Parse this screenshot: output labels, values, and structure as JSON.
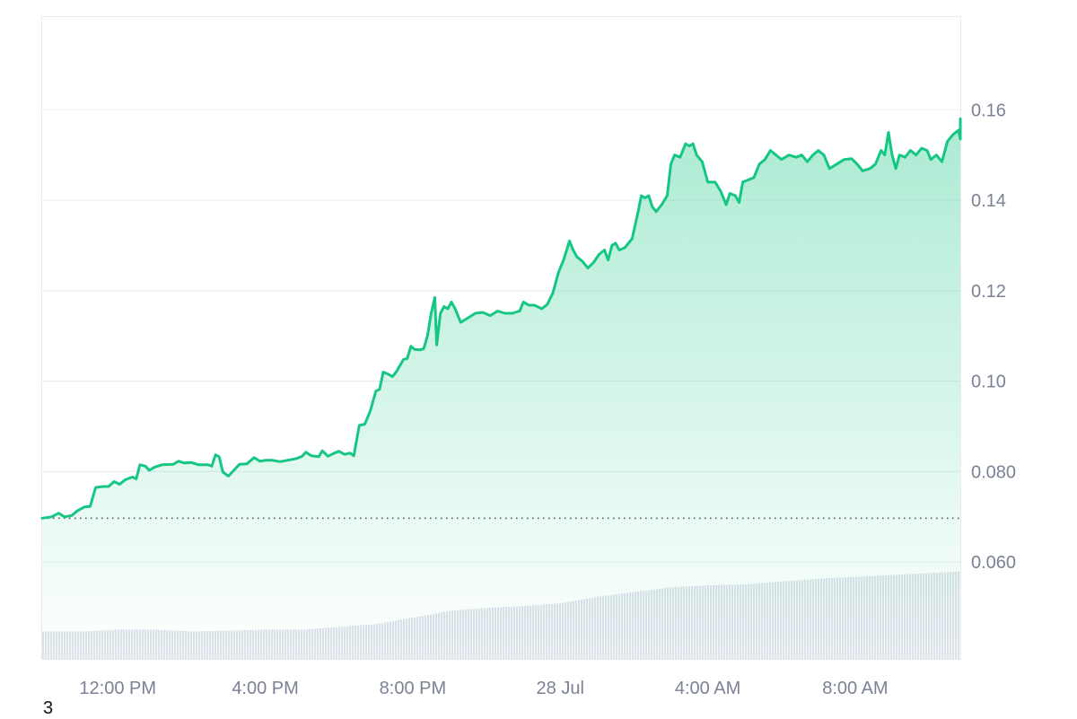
{
  "chart_data": {
    "type": "area",
    "title": "",
    "xlabel": "",
    "ylabel": "",
    "x_tick_labels": [
      "12:00 PM",
      "4:00 PM",
      "8:00 PM",
      "28 Jul",
      "4:00 AM",
      "8:00 AM"
    ],
    "y_tick_labels": [
      "0.060",
      "0.080",
      "0.10",
      "0.12",
      "0.14",
      "0.16"
    ],
    "y_ticks": [
      0.06,
      0.08,
      0.1,
      0.12,
      0.14,
      0.16
    ],
    "ylim": [
      0.0384,
      0.1805
    ],
    "x_unit": "hours",
    "xlim": [
      9.95,
      34.85
    ],
    "x_tick_positions": [
      12,
      16,
      20,
      24,
      28,
      32
    ],
    "grid": true,
    "legend": "none",
    "y_axis_position": "right",
    "reference_line": {
      "value": 0.0697,
      "style": "dotted"
    },
    "series": [
      {
        "color": "#16c784",
        "points": [
          [
            9.95,
            0.0697
          ],
          [
            10.2,
            0.07
          ],
          [
            10.4,
            0.0708
          ],
          [
            10.55,
            0.07
          ],
          [
            10.75,
            0.0703
          ],
          [
            10.9,
            0.0713
          ],
          [
            11.1,
            0.0722
          ],
          [
            11.25,
            0.0723
          ],
          [
            11.4,
            0.0765
          ],
          [
            11.6,
            0.0767
          ],
          [
            11.75,
            0.0767
          ],
          [
            11.9,
            0.0778
          ],
          [
            12.05,
            0.0772
          ],
          [
            12.2,
            0.0782
          ],
          [
            12.4,
            0.0788
          ],
          [
            12.5,
            0.0784
          ],
          [
            12.6,
            0.0815
          ],
          [
            12.75,
            0.0812
          ],
          [
            12.85,
            0.0803
          ],
          [
            13.0,
            0.081
          ],
          [
            13.2,
            0.0815
          ],
          [
            13.5,
            0.0816
          ],
          [
            13.65,
            0.0823
          ],
          [
            13.8,
            0.0819
          ],
          [
            14.0,
            0.082
          ],
          [
            14.2,
            0.0815
          ],
          [
            14.45,
            0.0815
          ],
          [
            14.55,
            0.0812
          ],
          [
            14.65,
            0.0837
          ],
          [
            14.75,
            0.0833
          ],
          [
            14.85,
            0.0799
          ],
          [
            15.0,
            0.079
          ],
          [
            15.15,
            0.0803
          ],
          [
            15.3,
            0.0816
          ],
          [
            15.5,
            0.0817
          ],
          [
            15.7,
            0.0831
          ],
          [
            15.85,
            0.0823
          ],
          [
            16.0,
            0.0825
          ],
          [
            16.2,
            0.0825
          ],
          [
            16.4,
            0.0822
          ],
          [
            16.6,
            0.0825
          ],
          [
            16.85,
            0.0829
          ],
          [
            17.0,
            0.0834
          ],
          [
            17.1,
            0.0843
          ],
          [
            17.25,
            0.0835
          ],
          [
            17.45,
            0.0833
          ],
          [
            17.55,
            0.0846
          ],
          [
            17.7,
            0.0834
          ],
          [
            17.85,
            0.084
          ],
          [
            18.0,
            0.0845
          ],
          [
            18.15,
            0.0838
          ],
          [
            18.3,
            0.0841
          ],
          [
            18.4,
            0.0835
          ],
          [
            18.55,
            0.0902
          ],
          [
            18.7,
            0.0905
          ],
          [
            18.85,
            0.0935
          ],
          [
            19.0,
            0.0978
          ],
          [
            19.1,
            0.0982
          ],
          [
            19.2,
            0.102
          ],
          [
            19.35,
            0.1015
          ],
          [
            19.45,
            0.101
          ],
          [
            19.55,
            0.102
          ],
          [
            19.75,
            0.1048
          ],
          [
            19.85,
            0.105
          ],
          [
            19.95,
            0.1077
          ],
          [
            20.05,
            0.107
          ],
          [
            20.2,
            0.1069
          ],
          [
            20.3,
            0.1072
          ],
          [
            20.4,
            0.11
          ],
          [
            20.5,
            0.115
          ],
          [
            20.6,
            0.1185
          ],
          [
            20.65,
            0.108
          ],
          [
            20.75,
            0.115
          ],
          [
            20.85,
            0.1165
          ],
          [
            20.95,
            0.116
          ],
          [
            21.05,
            0.1175
          ],
          [
            21.15,
            0.116
          ],
          [
            21.3,
            0.113
          ],
          [
            21.5,
            0.114
          ],
          [
            21.7,
            0.115
          ],
          [
            21.9,
            0.1152
          ],
          [
            22.1,
            0.1145
          ],
          [
            22.3,
            0.1155
          ],
          [
            22.5,
            0.115
          ],
          [
            22.7,
            0.115
          ],
          [
            22.9,
            0.1155
          ],
          [
            23.0,
            0.1175
          ],
          [
            23.15,
            0.1168
          ],
          [
            23.3,
            0.1168
          ],
          [
            23.5,
            0.116
          ],
          [
            23.65,
            0.117
          ],
          [
            23.8,
            0.1195
          ],
          [
            23.95,
            0.124
          ],
          [
            24.1,
            0.127
          ],
          [
            24.25,
            0.131
          ],
          [
            24.35,
            0.129
          ],
          [
            24.45,
            0.1275
          ],
          [
            24.6,
            0.1265
          ],
          [
            24.75,
            0.125
          ],
          [
            24.9,
            0.1262
          ],
          [
            25.05,
            0.128
          ],
          [
            25.2,
            0.129
          ],
          [
            25.3,
            0.1268
          ],
          [
            25.4,
            0.13
          ],
          [
            25.5,
            0.1305
          ],
          [
            25.6,
            0.129
          ],
          [
            25.75,
            0.1295
          ],
          [
            25.95,
            0.1315
          ],
          [
            26.1,
            0.137
          ],
          [
            26.2,
            0.141
          ],
          [
            26.3,
            0.1405
          ],
          [
            26.4,
            0.141
          ],
          [
            26.5,
            0.1385
          ],
          [
            26.6,
            0.1375
          ],
          [
            26.75,
            0.139
          ],
          [
            26.9,
            0.141
          ],
          [
            27.0,
            0.148
          ],
          [
            27.1,
            0.15
          ],
          [
            27.25,
            0.1495
          ],
          [
            27.4,
            0.1525
          ],
          [
            27.5,
            0.152
          ],
          [
            27.6,
            0.1525
          ],
          [
            27.7,
            0.15
          ],
          [
            27.85,
            0.1485
          ],
          [
            28.0,
            0.144
          ],
          [
            28.2,
            0.144
          ],
          [
            28.35,
            0.142
          ],
          [
            28.5,
            0.139
          ],
          [
            28.6,
            0.1415
          ],
          [
            28.75,
            0.141
          ],
          [
            28.85,
            0.1395
          ],
          [
            28.95,
            0.144
          ],
          [
            29.1,
            0.1445
          ],
          [
            29.25,
            0.145
          ],
          [
            29.4,
            0.148
          ],
          [
            29.55,
            0.149
          ],
          [
            29.7,
            0.151
          ],
          [
            29.85,
            0.15
          ],
          [
            30.0,
            0.149
          ],
          [
            30.2,
            0.15
          ],
          [
            30.4,
            0.1495
          ],
          [
            30.55,
            0.15
          ],
          [
            30.7,
            0.1485
          ],
          [
            30.85,
            0.15
          ],
          [
            31.0,
            0.151
          ],
          [
            31.15,
            0.15
          ],
          [
            31.3,
            0.147
          ],
          [
            31.5,
            0.148
          ],
          [
            31.7,
            0.149
          ],
          [
            31.9,
            0.1492
          ],
          [
            32.05,
            0.148
          ],
          [
            32.2,
            0.1465
          ],
          [
            32.4,
            0.147
          ],
          [
            32.55,
            0.148
          ],
          [
            32.7,
            0.151
          ],
          [
            32.8,
            0.15
          ],
          [
            32.9,
            0.155
          ],
          [
            33.0,
            0.15
          ],
          [
            33.1,
            0.147
          ],
          [
            33.2,
            0.15
          ],
          [
            33.35,
            0.1495
          ],
          [
            33.5,
            0.151
          ],
          [
            33.65,
            0.15
          ],
          [
            33.8,
            0.1515
          ],
          [
            33.95,
            0.151
          ],
          [
            34.05,
            0.149
          ],
          [
            34.2,
            0.15
          ],
          [
            34.35,
            0.1485
          ],
          [
            34.5,
            0.153
          ],
          [
            34.65,
            0.1545
          ],
          [
            34.8,
            0.1555
          ],
          [
            34.95,
            0.1535
          ],
          [
            35.1,
            0.1545
          ],
          [
            35.25,
            0.156
          ],
          [
            35.4,
            0.155
          ],
          [
            35.55,
            0.154
          ],
          [
            35.7,
            0.1575
          ],
          [
            35.85,
            0.158
          ]
        ]
      }
    ],
    "volume": {
      "color": "#dde3ea",
      "scale": "relative",
      "points": [
        [
          9.95,
          0.3
        ],
        [
          11.0,
          0.3
        ],
        [
          12.0,
          0.32
        ],
        [
          13.0,
          0.32
        ],
        [
          14.0,
          0.3
        ],
        [
          15.0,
          0.31
        ],
        [
          16.0,
          0.32
        ],
        [
          17.0,
          0.32
        ],
        [
          18.0,
          0.35
        ],
        [
          19.0,
          0.38
        ],
        [
          20.0,
          0.45
        ],
        [
          21.0,
          0.52
        ],
        [
          22.0,
          0.55
        ],
        [
          23.0,
          0.57
        ],
        [
          24.0,
          0.6
        ],
        [
          25.0,
          0.67
        ],
        [
          26.0,
          0.72
        ],
        [
          27.0,
          0.77
        ],
        [
          28.0,
          0.79
        ],
        [
          29.0,
          0.8
        ],
        [
          30.0,
          0.83
        ],
        [
          31.0,
          0.86
        ],
        [
          32.0,
          0.88
        ],
        [
          33.0,
          0.9
        ],
        [
          34.0,
          0.92
        ],
        [
          35.0,
          0.94
        ],
        [
          35.85,
          0.96
        ]
      ]
    }
  },
  "footnote": "3"
}
